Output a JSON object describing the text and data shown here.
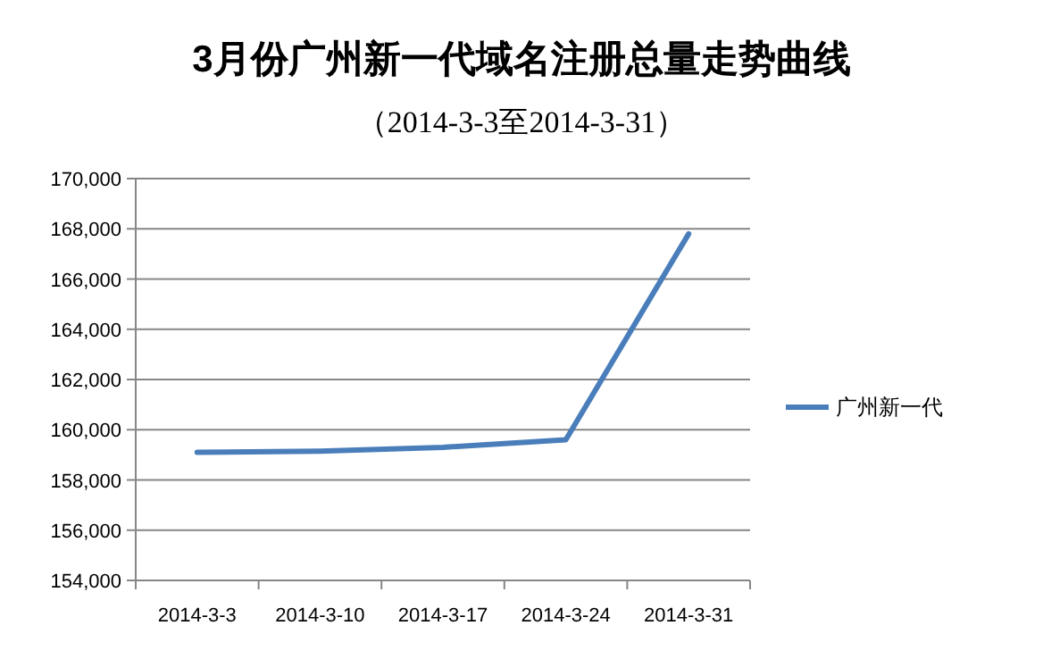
{
  "chart_data": {
    "type": "line",
    "title": "3月份广州新一代域名注册总量走势曲线",
    "subtitle": "（2014-3-3至2014-3-31）",
    "categories": [
      "2014-3-3",
      "2014-3-10",
      "2014-3-17",
      "2014-3-24",
      "2014-3-31"
    ],
    "series": [
      {
        "name": "广州新一代",
        "color": "#4a7ebb",
        "values": [
          159100,
          159150,
          159300,
          159600,
          167800
        ]
      }
    ],
    "ylim": [
      154000,
      170000
    ],
    "yticks": [
      {
        "value": 154000,
        "label": "154,000"
      },
      {
        "value": 156000,
        "label": "156,000"
      },
      {
        "value": 158000,
        "label": "158,000"
      },
      {
        "value": 160000,
        "label": "160,000"
      },
      {
        "value": 162000,
        "label": "162,000"
      },
      {
        "value": 164000,
        "label": "164,000"
      },
      {
        "value": 166000,
        "label": "166,000"
      },
      {
        "value": 168000,
        "label": "168,000"
      },
      {
        "value": 170000,
        "label": "170,000"
      }
    ],
    "grid": "y",
    "legend": "right",
    "marker": "none",
    "line_style": "solid"
  }
}
